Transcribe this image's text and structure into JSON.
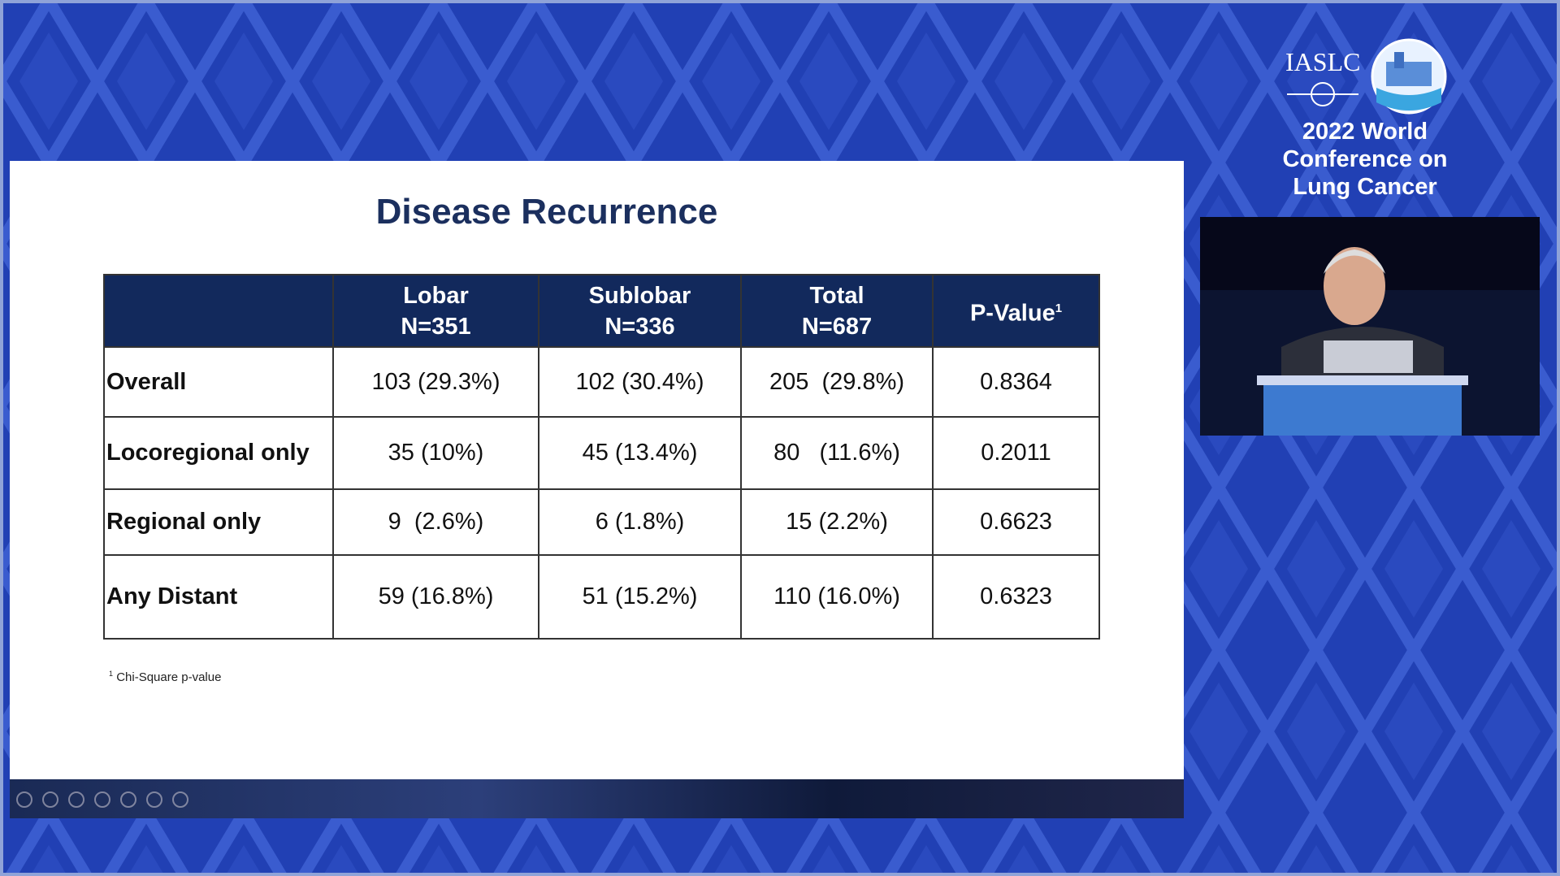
{
  "slide": {
    "title": "Disease Recurrence",
    "table": {
      "header": [
        {
          "lines": [
            "Lobar",
            "N=351"
          ]
        },
        {
          "lines": [
            "Sublobar",
            "N=336"
          ]
        },
        {
          "lines": [
            "Total",
            "N=687"
          ]
        },
        {
          "text": "P-Value",
          "sup": "1"
        }
      ],
      "rows": [
        [
          "Overall",
          "103 (29.3%)",
          "102 (30.4%)",
          "205  (29.8%)",
          "0.8364"
        ],
        [
          "Locoregional only",
          "35 (10%)",
          "45 (13.4%)",
          "80   (11.6%)",
          "0.2011"
        ],
        [
          "Regional only",
          "9  (2.6%)",
          "6 (1.8%)",
          "15 (2.2%)",
          "0.6623"
        ],
        [
          "Any Distant",
          "59 (16.8%)",
          "51 (15.2%)",
          "110 (16.0%)",
          "0.6323"
        ]
      ]
    },
    "footnote": {
      "mark": "1",
      "text": "Chi-Square p-value"
    }
  },
  "conference": {
    "org": "IASLC",
    "name_lines": [
      "2022 World",
      "Conference on",
      "Lung Cancer"
    ]
  }
}
